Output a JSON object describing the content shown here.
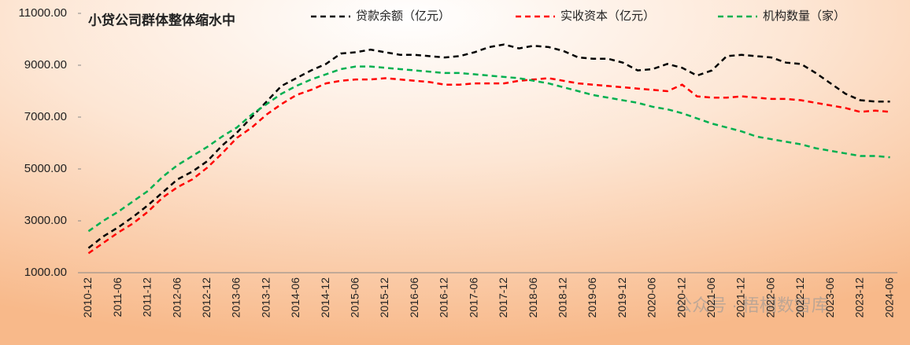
{
  "chart_data": {
    "type": "line",
    "title": "小贷公司群体整体缩水中",
    "watermark": "公众号 · 梧桐数智库",
    "categories": [
      "2010-12",
      null,
      "2011-06",
      null,
      "2011-12",
      null,
      "2012-06",
      null,
      "2012-12",
      null,
      "2013-06",
      null,
      "2013-12",
      null,
      "2014-06",
      null,
      "2014-12",
      null,
      "2015-06",
      null,
      "2015-12",
      null,
      "2016-06",
      null,
      "2016-12",
      null,
      "2017-06",
      null,
      "2017-12",
      null,
      "2018-06",
      null,
      "2018-12",
      null,
      "2019-06",
      null,
      "2019-12",
      null,
      "2020-06",
      null,
      "2020-12",
      null,
      "2021-06",
      null,
      "2021-12",
      null,
      "2022-06",
      null,
      "2022-12",
      null,
      "2023-06",
      null,
      "2023-12",
      null,
      "2024-06"
    ],
    "series": [
      {
        "name": "贷款余额（亿元）",
        "color": "#000000",
        "values": [
          1950,
          2400,
          2750,
          3150,
          3600,
          4100,
          4600,
          4900,
          5300,
          5900,
          6400,
          7000,
          7600,
          8200,
          8500,
          8800,
          9050,
          9450,
          9500,
          9600,
          9500,
          9400,
          9400,
          9350,
          9300,
          9350,
          9500,
          9700,
          9800,
          9650,
          9750,
          9700,
          9550,
          9300,
          9250,
          9250,
          9100,
          8800,
          8850,
          9050,
          8900,
          8600,
          8800,
          9350,
          9400,
          9350,
          9300,
          9100,
          9050,
          8700,
          8300,
          7900,
          7650,
          7600,
          7600
        ]
      },
      {
        "name": "实收资本（亿元）",
        "color": "#ff0000",
        "values": [
          1750,
          2150,
          2550,
          2900,
          3350,
          3900,
          4300,
          4600,
          5050,
          5600,
          6200,
          6600,
          7100,
          7500,
          7850,
          8050,
          8300,
          8400,
          8450,
          8450,
          8500,
          8450,
          8400,
          8350,
          8250,
          8250,
          8300,
          8300,
          8300,
          8400,
          8450,
          8500,
          8400,
          8300,
          8250,
          8200,
          8150,
          8100,
          8050,
          8000,
          8250,
          7800,
          7750,
          7750,
          7800,
          7750,
          7700,
          7700,
          7650,
          7550,
          7450,
          7350,
          7200,
          7250,
          7200
        ]
      },
      {
        "name": "机构数量（家）",
        "color": "#00b050",
        "values": [
          2600,
          3000,
          3350,
          3750,
          4150,
          4700,
          5150,
          5500,
          5850,
          6250,
          6600,
          7100,
          7500,
          7900,
          8200,
          8450,
          8650,
          8850,
          8950,
          8950,
          8900,
          8850,
          8800,
          8750,
          8700,
          8700,
          8650,
          8600,
          8550,
          8500,
          8400,
          8300,
          8150,
          8000,
          7850,
          7750,
          7650,
          7550,
          7400,
          7300,
          7150,
          6950,
          6750,
          6600,
          6450,
          6250,
          6150,
          6050,
          5950,
          5800,
          5700,
          5600,
          5500,
          5500,
          5450
        ]
      }
    ],
    "ylim": [
      1000,
      11000
    ],
    "yticks": [
      {
        "value": 1000,
        "label": "1000.00"
      },
      {
        "value": 3000,
        "label": "3000.00"
      },
      {
        "value": 5000,
        "label": "5000.00"
      },
      {
        "value": 7000,
        "label": "7000.00"
      },
      {
        "value": 9000,
        "label": "9000.00"
      },
      {
        "value": 11000,
        "label": "11000.00"
      }
    ],
    "grid": false,
    "line_style": "dashed"
  }
}
